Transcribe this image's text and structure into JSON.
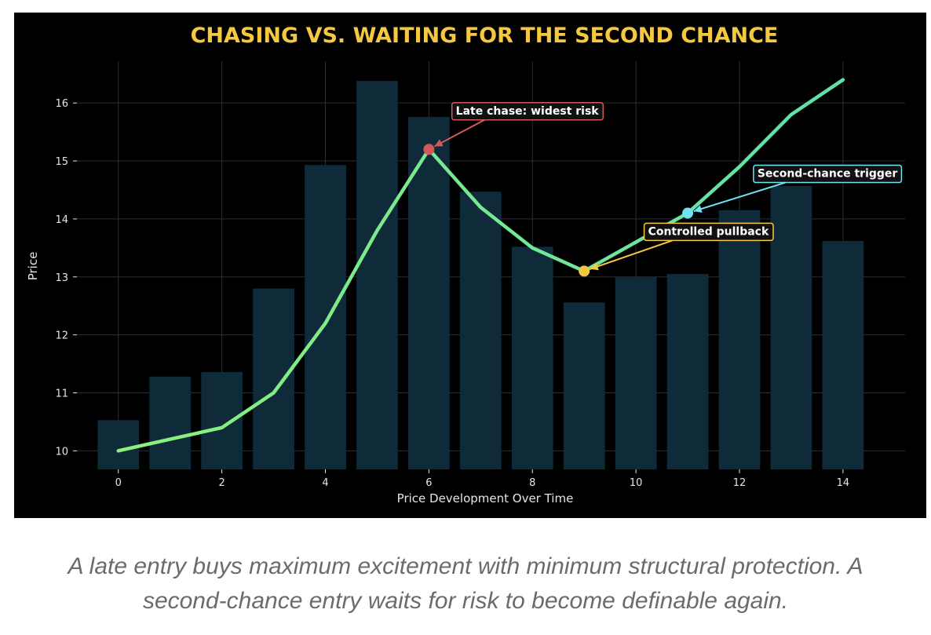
{
  "chart_data": {
    "type": "bar+line",
    "title": "CHASING VS. WAITING FOR THE SECOND CHANCE",
    "xlabel": "Price Development Over Time",
    "ylabel": "Price",
    "xlim": [
      -0.8,
      15.2
    ],
    "ylim": [
      9.68,
      16.72
    ],
    "x_ticks": [
      0,
      2,
      4,
      6,
      8,
      10,
      12,
      14
    ],
    "y_ticks": [
      10,
      11,
      12,
      13,
      14,
      15,
      16
    ],
    "grid": true,
    "legend": "none",
    "bars": {
      "x": [
        0,
        1,
        2,
        3,
        4,
        5,
        6,
        7,
        8,
        9,
        10,
        11,
        12,
        13,
        14
      ],
      "values": [
        10.53,
        11.28,
        11.36,
        12.8,
        14.93,
        16.38,
        15.76,
        14.47,
        13.52,
        12.56,
        13.0,
        13.05,
        14.15,
        14.57,
        13.62
      ],
      "color": "#0f2a38"
    },
    "line": {
      "x": [
        0,
        1,
        2,
        3,
        4,
        5,
        6,
        7,
        8,
        9,
        10,
        11,
        12,
        13,
        14
      ],
      "values": [
        10.0,
        10.2,
        10.4,
        11.0,
        12.2,
        13.8,
        15.2,
        14.2,
        13.5,
        13.1,
        13.6,
        14.1,
        14.9,
        15.8,
        16.4
      ],
      "color_start": "#8cf07c",
      "color_end": "#5fe0a8"
    },
    "markers": [
      {
        "x": 6,
        "y": 15.2,
        "color": "#d05a5a",
        "label": "Late chase: widest risk",
        "label_x": 7.9,
        "label_y": 15.87,
        "border": "#d05a5a"
      },
      {
        "x": 9,
        "y": 13.1,
        "color": "#f5c842",
        "label": "Controlled pullback",
        "label_x": 11.4,
        "label_y": 13.79,
        "border": "#f5c842"
      },
      {
        "x": 11,
        "y": 14.1,
        "color": "#6ee3f2",
        "label": "Second-chance trigger",
        "label_x": 13.7,
        "label_y": 14.79,
        "border": "#6ee3f2"
      }
    ],
    "colors": {
      "background": "#000000",
      "title": "#f5c842",
      "text": "#e6e6e6",
      "grid": "#2a2f33"
    }
  },
  "caption": {
    "line1": "A late entry buys maximum excitement with minimum structural protection. A",
    "line2": "second-chance entry waits for risk to become definable again."
  }
}
